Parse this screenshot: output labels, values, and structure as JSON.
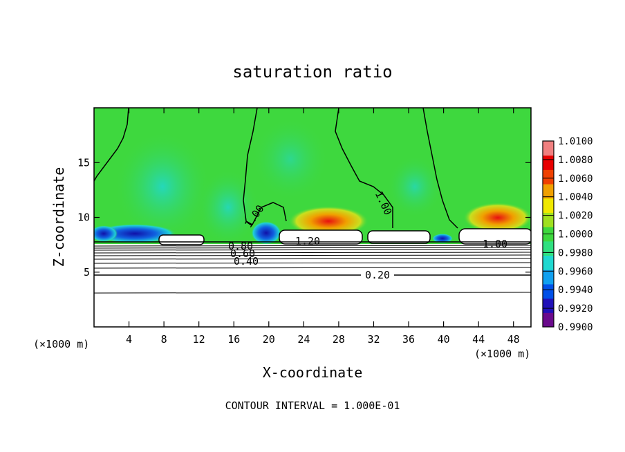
{
  "chart_data": {
    "type": "heatmap",
    "title": "saturation ratio",
    "xlabel": "X-coordinate",
    "ylabel": "Z-coordinate",
    "x_unit_left": "(×1000 m)",
    "x_unit_right": "(×1000 m)",
    "xlim": [
      0,
      50
    ],
    "ylim": [
      0,
      20
    ],
    "x_ticks": [
      4,
      8,
      12,
      16,
      20,
      24,
      28,
      32,
      36,
      40,
      44,
      48
    ],
    "y_ticks": [
      5,
      10,
      15
    ],
    "contour_interval_text": "CONTOUR INTERVAL = 1.000E-01",
    "contour_labels": [
      "1.00",
      "1.00",
      "1.20",
      "1.00",
      "0.80",
      "0.60",
      "0.40",
      "0.20"
    ],
    "colorbar": {
      "labels": [
        "1.0100",
        "1.0080",
        "1.0060",
        "1.0040",
        "1.0020",
        "1.0000",
        "0.9980",
        "0.9960",
        "0.9940",
        "0.9920",
        "0.9900"
      ],
      "min": 0.99,
      "max": 1.01,
      "colors": [
        "#6a0a8c",
        "#2010b8",
        "#0050e8",
        "#10a0f0",
        "#20d8d0",
        "#30e080",
        "#3ed83e",
        "#a0e020",
        "#f0e800",
        "#f0a000",
        "#f04000",
        "#e80000",
        "#f08080"
      ]
    }
  }
}
